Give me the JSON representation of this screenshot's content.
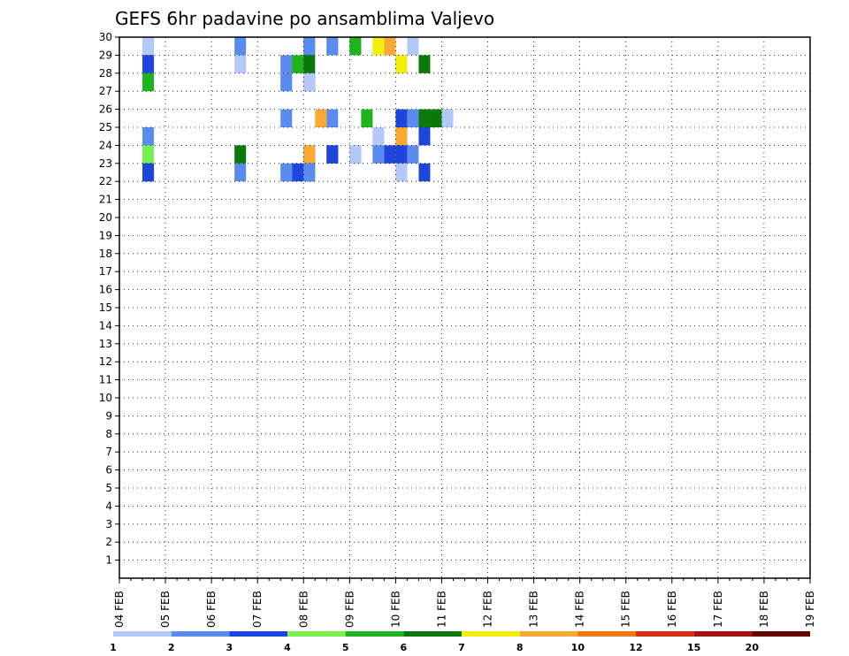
{
  "chart_data": {
    "type": "heatmap",
    "title": "GEFS 6hr padavine po ansamblima Valjevo",
    "xlabel": "",
    "ylabel": "",
    "x_ticks": [
      "04 FEB",
      "05 FEB",
      "06 FEB",
      "07 FEB",
      "08 FEB",
      "09 FEB",
      "10 FEB",
      "11 FEB",
      "12 FEB",
      "13 FEB",
      "14 FEB",
      "15 FEB",
      "16 FEB",
      "17 FEB",
      "18 FEB",
      "19 FEB"
    ],
    "y_ticks": [
      1,
      2,
      3,
      4,
      5,
      6,
      7,
      8,
      9,
      10,
      11,
      12,
      13,
      14,
      15,
      16,
      17,
      18,
      19,
      20,
      21,
      22,
      23,
      24,
      25,
      26,
      27,
      28,
      29,
      30
    ],
    "ylim": [
      0,
      30
    ],
    "grid": true,
    "steps_per_day": 4,
    "colorbar": {
      "labels": [
        "1",
        "2",
        "3",
        "4",
        "5",
        "6",
        "7",
        "8",
        "10",
        "12",
        "15",
        "20"
      ],
      "colors": [
        "#b4c8fa",
        "#5a8cf0",
        "#1e46dc",
        "#78f050",
        "#1eb41e",
        "#0a780a",
        "#f0f00a",
        "#faaa32",
        "#f07814",
        "#d23214",
        "#a01414",
        "#640000"
      ]
    },
    "cells": [
      [
        1,
        30,
        2
      ],
      [
        6,
        30,
        2
      ],
      [
        8,
        30,
        2
      ],
      [
        9,
        30,
        2
      ],
      [
        13,
        30,
        2
      ],
      [
        4,
        30,
        5
      ],
      [
        5,
        30,
        7
      ],
      [
        12,
        30,
        8
      ],
      [
        11,
        30,
        1
      ],
      [
        3,
        30,
        1
      ],
      [
        6,
        30,
        2
      ],
      [
        7,
        30,
        2
      ],
      [
        1,
        29,
        2
      ],
      [
        2,
        29,
        5
      ],
      [
        7,
        29,
        6
      ],
      [
        8,
        29,
        1
      ],
      [
        3,
        29,
        1
      ],
      [
        8,
        29,
        8
      ],
      [
        11,
        29,
        1
      ],
      [
        3,
        29,
        3
      ],
      [
        11,
        29,
        2
      ],
      [
        11,
        29,
        5
      ],
      [
        11,
        29,
        6
      ],
      [
        11,
        29,
        7
      ],
      [
        1,
        28,
        3
      ],
      [
        8,
        28,
        1
      ],
      [
        11,
        28,
        5
      ],
      [
        11,
        28,
        1
      ],
      [
        11,
        28,
        2
      ],
      [
        1,
        26,
        3
      ],
      [
        10,
        26,
        2
      ],
      [
        11,
        26,
        6
      ],
      [
        11,
        26,
        6
      ],
      [
        11,
        26,
        3
      ],
      [
        11,
        26,
        1
      ],
      [
        11,
        26,
        2
      ],
      [
        11,
        26,
        8
      ],
      [
        11,
        26,
        2
      ],
      [
        11,
        26,
        5
      ],
      [
        11,
        25,
        1
      ],
      [
        11,
        25,
        2
      ],
      [
        11,
        25,
        8
      ],
      [
        11,
        25,
        3
      ],
      [
        11,
        25,
        2
      ],
      [
        1,
        24,
        3
      ],
      [
        10,
        24,
        6
      ],
      [
        11,
        24,
        3
      ],
      [
        11,
        24,
        2
      ],
      [
        11,
        24,
        1
      ],
      [
        11,
        24,
        2
      ],
      [
        11,
        24,
        3
      ],
      [
        11,
        24,
        2
      ],
      [
        11,
        24,
        4
      ],
      [
        11,
        24,
        6
      ],
      [
        11,
        24,
        8
      ],
      [
        11,
        24,
        4
      ],
      [
        11,
        24,
        3
      ],
      [
        10,
        23,
        3
      ],
      [
        11,
        23,
        1
      ],
      [
        11,
        23,
        2
      ],
      [
        11,
        23,
        1
      ],
      [
        11,
        23,
        4
      ],
      [
        11,
        23,
        3
      ],
      [
        11,
        23,
        2
      ],
      [
        11,
        23,
        3
      ],
      [
        11,
        23,
        2
      ],
      [
        11,
        23,
        1
      ],
      [
        11,
        23,
        2
      ],
      [
        11,
        23,
        2
      ],
      [
        11,
        23,
        3
      ]
    ]
  }
}
